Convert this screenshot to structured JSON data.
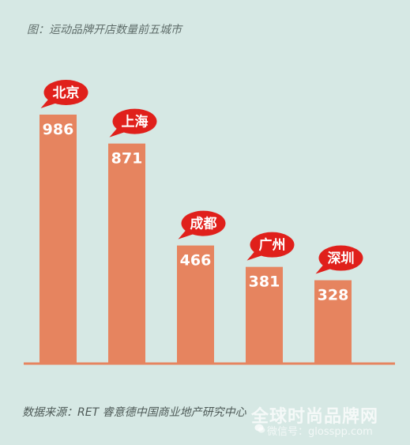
{
  "title": "图：运动品牌开店数量前五城市",
  "source": "数据来源：RET 睿意德中国商业地产研究中心",
  "watermark": {
    "text": "全球时尚品牌网",
    "sub": "微信号：glosspp.com"
  },
  "colors": {
    "background": "#d6e8e4",
    "bar": "#e6845f",
    "bubble": "#e0201b",
    "axis": "#e6845f"
  },
  "chart_data": {
    "type": "bar",
    "title": "图：运动品牌开店数量前五城市",
    "categories": [
      "北京",
      "上海",
      "成都",
      "广州",
      "深圳"
    ],
    "values": [
      986,
      871,
      466,
      381,
      328
    ],
    "xlabel": "",
    "ylabel": "",
    "grid": false
  }
}
